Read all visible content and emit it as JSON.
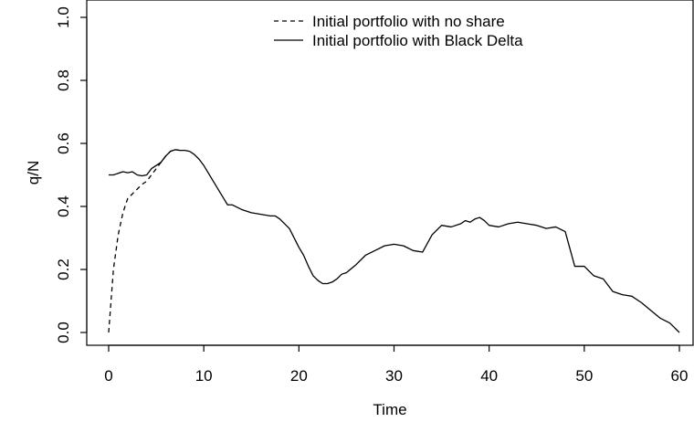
{
  "chart_data": {
    "type": "line",
    "title": "",
    "xlabel": "Time",
    "ylabel": "q/N",
    "xlim": [
      0,
      60
    ],
    "ylim": [
      0,
      1
    ],
    "x_ticks": [
      0,
      10,
      20,
      30,
      40,
      50,
      60
    ],
    "y_ticks": [
      0.0,
      0.2,
      0.4,
      0.6,
      0.8,
      1.0
    ],
    "x_tick_labels": [
      "0",
      "10",
      "20",
      "30",
      "40",
      "50",
      "60"
    ],
    "y_tick_labels": [
      "0.0",
      "0.2",
      "0.4",
      "0.6",
      "0.8",
      "1.0"
    ],
    "grid": false,
    "legend_position": "top-right",
    "series": [
      {
        "name": "Initial portfolio with no share",
        "style": "dashed",
        "color": "#000000",
        "x": [
          0,
          0.5,
          1,
          1.5,
          2,
          2.5,
          3,
          3.5,
          4,
          4.5,
          5,
          5.5,
          6,
          6.5,
          7,
          7.5
        ],
        "y": [
          0.0,
          0.2,
          0.31,
          0.38,
          0.425,
          0.44,
          0.455,
          0.47,
          0.48,
          0.5,
          0.52,
          0.54,
          0.56,
          0.575,
          0.58,
          0.578
        ]
      },
      {
        "name": "Initial portfolio with Black Delta",
        "style": "solid",
        "color": "#000000",
        "x": [
          0,
          0.5,
          1,
          1.5,
          2,
          2.5,
          3,
          3.5,
          4,
          4.5,
          5,
          5.5,
          6,
          6.5,
          7,
          7.5,
          8,
          8.5,
          9,
          9.5,
          10,
          11,
          12,
          12.5,
          13,
          14,
          15,
          16,
          17,
          17.5,
          18,
          19,
          20,
          20.5,
          21,
          21.5,
          22,
          22.5,
          23,
          23.5,
          24,
          24.5,
          25,
          26,
          27,
          28,
          29,
          30,
          31,
          32,
          33,
          34,
          35,
          36,
          37,
          37.5,
          38,
          38.5,
          39,
          39.5,
          40,
          41,
          42,
          43,
          44,
          45,
          46,
          47,
          48,
          49,
          50,
          51,
          52,
          53,
          54,
          55,
          56,
          57,
          58,
          59,
          60
        ],
        "y": [
          0.5,
          0.5,
          0.505,
          0.51,
          0.507,
          0.51,
          0.5,
          0.497,
          0.5,
          0.52,
          0.53,
          0.54,
          0.56,
          0.575,
          0.58,
          0.578,
          0.578,
          0.575,
          0.565,
          0.55,
          0.53,
          0.48,
          0.43,
          0.405,
          0.405,
          0.39,
          0.38,
          0.375,
          0.37,
          0.37,
          0.36,
          0.33,
          0.27,
          0.245,
          0.21,
          0.18,
          0.165,
          0.155,
          0.155,
          0.16,
          0.17,
          0.185,
          0.19,
          0.215,
          0.245,
          0.26,
          0.275,
          0.28,
          0.275,
          0.26,
          0.255,
          0.31,
          0.34,
          0.335,
          0.345,
          0.355,
          0.35,
          0.36,
          0.365,
          0.355,
          0.34,
          0.335,
          0.345,
          0.35,
          0.345,
          0.34,
          0.33,
          0.335,
          0.32,
          0.21,
          0.21,
          0.18,
          0.17,
          0.13,
          0.12,
          0.115,
          0.095,
          0.07,
          0.045,
          0.03,
          0.0
        ]
      }
    ]
  }
}
